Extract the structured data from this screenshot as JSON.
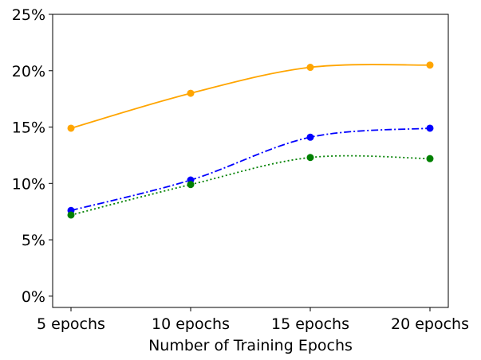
{
  "chart_data": {
    "type": "line",
    "title": "",
    "xlabel": "Number of Training Epochs",
    "ylabel": "",
    "categories": [
      "5 epochs",
      "10 epochs",
      "15 epochs",
      "20 epochs"
    ],
    "ylim": [
      -1,
      25
    ],
    "yticks": [
      0,
      5,
      10,
      15,
      20,
      25
    ],
    "ytick_labels": [
      "0%",
      "5%",
      "10%",
      "15%",
      "20%",
      "25%"
    ],
    "grid": false,
    "legend": "none",
    "series": [
      {
        "name": "orange-series",
        "color": "#FFA500",
        "linestyle": "solid",
        "values": [
          14.9,
          18.0,
          20.3,
          20.5
        ]
      },
      {
        "name": "blue-series",
        "color": "#0000FF",
        "linestyle": "dashdot",
        "values": [
          7.6,
          10.3,
          14.1,
          14.9
        ]
      },
      {
        "name": "green-series",
        "color": "#008000",
        "linestyle": "dotted",
        "values": [
          7.2,
          9.9,
          12.3,
          12.2
        ]
      }
    ]
  }
}
